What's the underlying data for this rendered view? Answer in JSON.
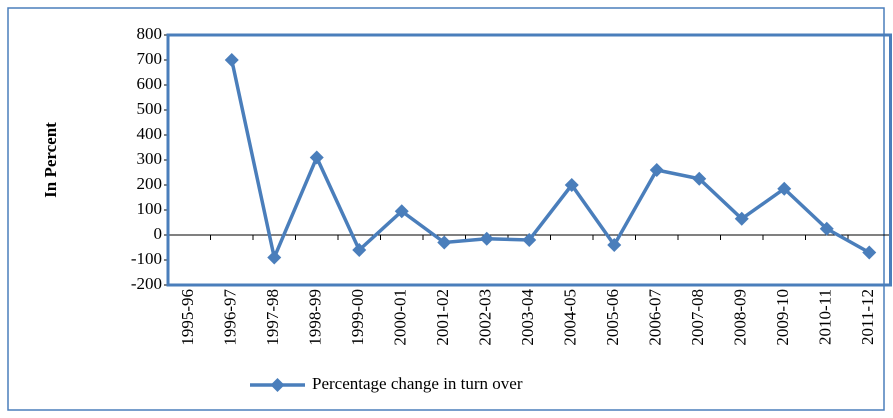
{
  "chart_data": {
    "type": "line",
    "y_label": "In Percent",
    "categories": [
      "1995-96",
      "1996-97",
      "1997-98",
      "1998-99",
      "1999-00",
      "2000-01",
      "2001-02",
      "2002-03",
      "2003-04",
      "2004-05",
      "2005-06",
      "2006-07",
      "2007-08",
      "2008-09",
      "2009-10",
      "2010-11",
      "2011-12"
    ],
    "series": [
      {
        "name": "Percentage change in turn over",
        "color": "#4a7ebb",
        "values": [
          null,
          700,
          -90,
          310,
          -60,
          95,
          -30,
          -15,
          -20,
          200,
          -40,
          260,
          225,
          65,
          185,
          25,
          -70
        ]
      }
    ],
    "ylim": [
      -200,
      800
    ],
    "yticks": [
      -200,
      -100,
      0,
      100,
      200,
      300,
      400,
      500,
      600,
      700,
      800
    ],
    "legend": "bottom"
  }
}
